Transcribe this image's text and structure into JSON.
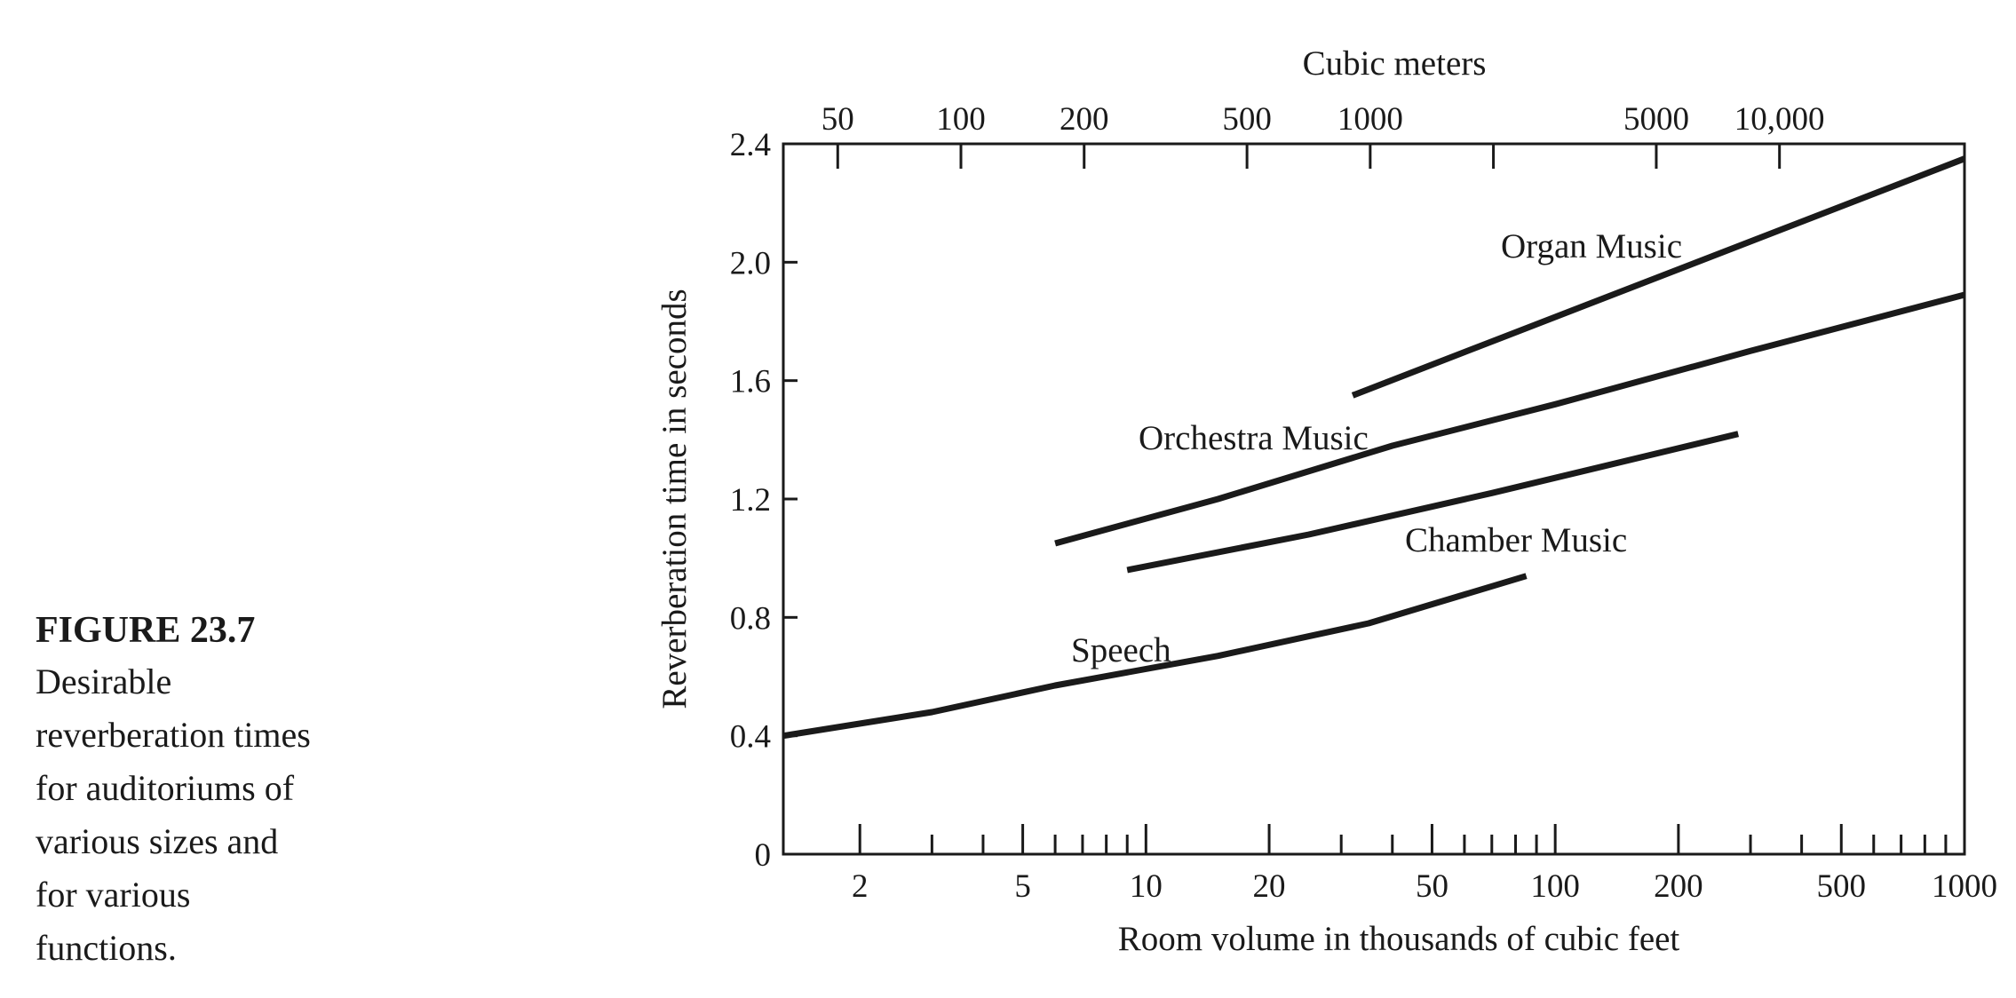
{
  "caption": {
    "title": "FIGURE 23.7",
    "text_lines": [
      "Desirable",
      "reverberation times",
      "for auditoriums of",
      "various sizes and",
      "for various",
      "functions."
    ]
  },
  "chart_data": {
    "type": "line",
    "title": "",
    "xlabel": "Room volume in thousands of cubic feet",
    "ylabel": "Reverberation time in seconds",
    "x2label": "Cubic meters",
    "x_scale": "log",
    "xlim": [
      1.3,
      1000
    ],
    "ylim": [
      0,
      2.4
    ],
    "x_major_ticks": [
      {
        "value": 2,
        "label": "2"
      },
      {
        "value": 5,
        "label": "5"
      },
      {
        "value": 10,
        "label": "10"
      },
      {
        "value": 20,
        "label": "20"
      },
      {
        "value": 50,
        "label": "50"
      },
      {
        "value": 100,
        "label": "100"
      },
      {
        "value": 200,
        "label": "200"
      },
      {
        "value": 500,
        "label": "500"
      },
      {
        "value": 1000,
        "label": "1000"
      }
    ],
    "x_minor_ticks": [
      3,
      4,
      6,
      7,
      8,
      9,
      30,
      40,
      60,
      70,
      80,
      90,
      300,
      400,
      600,
      700,
      800,
      900
    ],
    "x2_ticks": [
      {
        "value": 50,
        "label": "50"
      },
      {
        "value": 100,
        "label": "100"
      },
      {
        "value": 200,
        "label": "200"
      },
      {
        "value": 500,
        "label": "500"
      },
      {
        "value": 1000,
        "label": "1000"
      },
      {
        "value": 5000,
        "label": "5000"
      },
      {
        "value": 10000,
        "label": "10,000"
      }
    ],
    "x2_minor_ticks": [
      2000
    ],
    "y_ticks": [
      {
        "value": 0,
        "label": "0"
      },
      {
        "value": 0.4,
        "label": "0.4"
      },
      {
        "value": 0.8,
        "label": "0.8"
      },
      {
        "value": 1.2,
        "label": "1.2"
      },
      {
        "value": 1.6,
        "label": "1.6"
      },
      {
        "value": 2.0,
        "label": "2.0"
      },
      {
        "value": 2.4,
        "label": "2.4"
      }
    ],
    "series": [
      {
        "name": "Organ Music",
        "x": [
          32,
          1000
        ],
        "y": [
          1.55,
          2.35
        ]
      },
      {
        "name": "Orchestra Music",
        "x": [
          6,
          15,
          40,
          100,
          300,
          1000
        ],
        "y": [
          1.05,
          1.2,
          1.38,
          1.52,
          1.7,
          1.89
        ]
      },
      {
        "name": "Chamber Music",
        "x": [
          9,
          25,
          70,
          280
        ],
        "y": [
          0.96,
          1.08,
          1.22,
          1.42
        ]
      },
      {
        "name": "Speech",
        "x": [
          1.3,
          3,
          6,
          15,
          35,
          85
        ],
        "y": [
          0.4,
          0.48,
          0.57,
          0.67,
          0.78,
          0.94
        ]
      }
    ]
  }
}
